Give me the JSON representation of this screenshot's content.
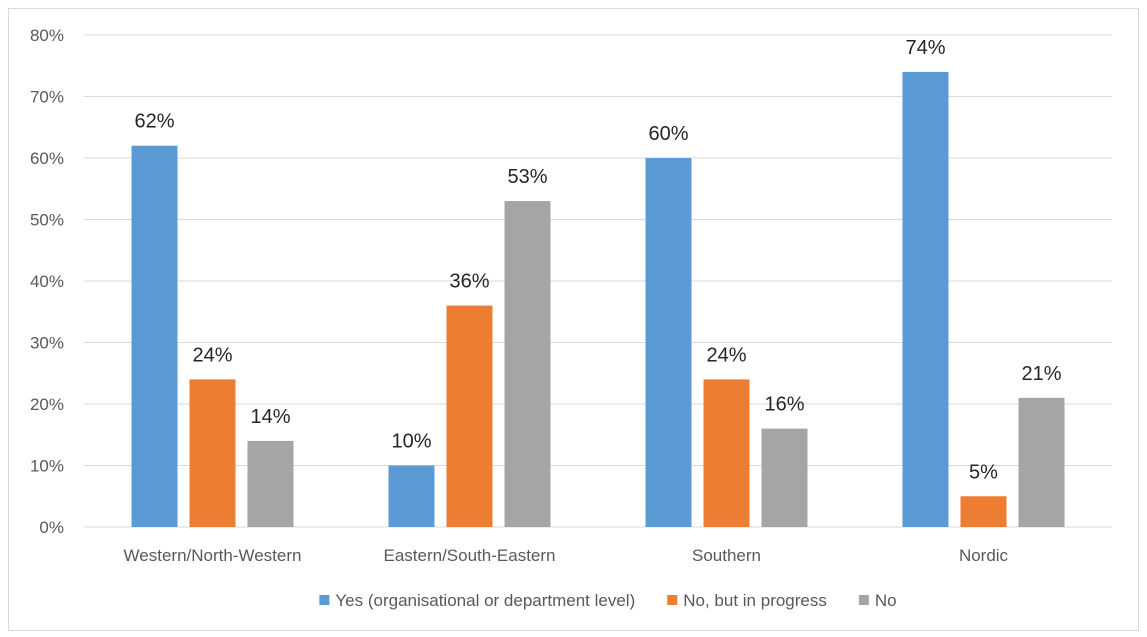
{
  "chart_data": {
    "type": "bar",
    "categories": [
      "Western/North-Western",
      "Eastern/South-Eastern",
      "Southern",
      "Nordic"
    ],
    "series": [
      {
        "name": "Yes (organisational or department level)",
        "values": [
          62,
          10,
          60,
          74
        ],
        "color": "#5b9bd5"
      },
      {
        "name": "No, but in progress",
        "values": [
          24,
          36,
          24,
          5
        ],
        "color": "#ed7d31"
      },
      {
        "name": "No",
        "values": [
          14,
          53,
          16,
          21
        ],
        "color": "#a5a5a5"
      }
    ],
    "data_labels": [
      [
        "62%",
        "10%",
        "60%",
        "74%"
      ],
      [
        "24%",
        "36%",
        "24%",
        "5%"
      ],
      [
        "14%",
        "53%",
        "16%",
        "21%"
      ]
    ],
    "y_ticks": [
      "0%",
      "10%",
      "20%",
      "30%",
      "40%",
      "50%",
      "60%",
      "70%",
      "80%"
    ],
    "ylim": [
      0,
      80
    ],
    "grid": true,
    "legend_position": "bottom",
    "title": "",
    "xlabel": "",
    "ylabel": ""
  }
}
